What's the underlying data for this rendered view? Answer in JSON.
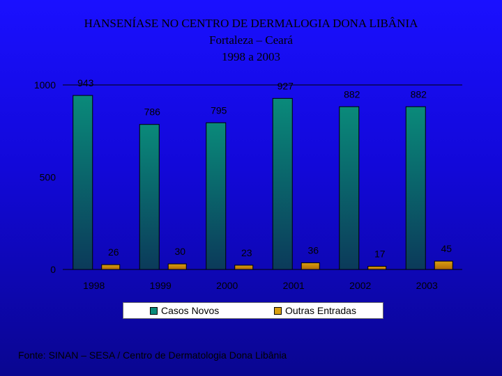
{
  "title": {
    "line1": "HANSENÍASE NO CENTRO DE DERMALOGIA DONA LIBÂNIA",
    "line2": "Fortaleza – Ceará",
    "line3": "1998 a 2003"
  },
  "source": "Fonte: SINAN – SESA / Centro de Dermatologia Dona Libânia",
  "chart_data": {
    "type": "bar",
    "categories": [
      "1998",
      "1999",
      "2000",
      "2001",
      "2002",
      "2003"
    ],
    "series": [
      {
        "name": "Casos Novos",
        "values": [
          943,
          786,
          795,
          927,
          882,
          882
        ],
        "color": "#0a8a7a"
      },
      {
        "name": "Outras Entradas",
        "values": [
          26,
          30,
          23,
          36,
          17,
          45
        ],
        "color": "#d9a010"
      }
    ],
    "yticks": [
      0,
      500,
      1000
    ],
    "ylim": [
      0,
      1000
    ],
    "legend": "bottom",
    "grid": false
  }
}
